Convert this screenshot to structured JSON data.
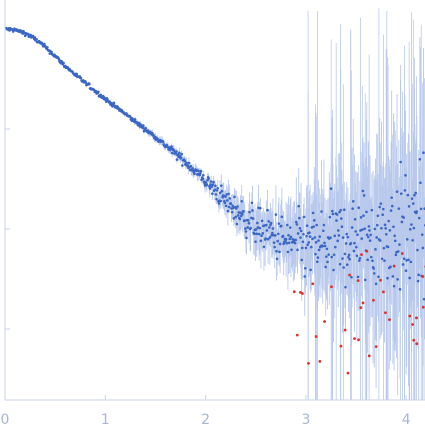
{
  "chart_data": {
    "type": "scatter",
    "title": "",
    "xlabel": "",
    "ylabel": "",
    "xlim": [
      0,
      4.2
    ],
    "y_scale": "log",
    "ylim_log10": [
      -2.7,
      1.1
    ],
    "x_ticks": [
      {
        "value": 0,
        "label": "0"
      },
      {
        "value": 1,
        "label": "1"
      },
      {
        "value": 2,
        "label": "2"
      },
      {
        "value": 3,
        "label": "3"
      },
      {
        "value": 4,
        "label": "4"
      }
    ],
    "y_ticks_log10": [
      0,
      -1,
      -2
    ],
    "grid": false,
    "legend": "none",
    "colors": {
      "axis": "#c8d2ea",
      "tick_text": "#a8b6d6",
      "points": "#3a66c4",
      "error_bars": "#b9c9ec",
      "outliers": "#e0312b"
    },
    "profile_log10": [
      [
        0.0,
        1.0
      ],
      [
        0.1,
        0.99
      ],
      [
        0.2,
        0.96
      ],
      [
        0.3,
        0.9
      ],
      [
        0.4,
        0.82
      ],
      [
        0.5,
        0.73
      ],
      [
        0.6,
        0.63
      ],
      [
        0.8,
        0.46
      ],
      [
        1.0,
        0.3
      ],
      [
        1.2,
        0.15
      ],
      [
        1.5,
        -0.08
      ],
      [
        1.8,
        -0.33
      ],
      [
        2.0,
        -0.52
      ],
      [
        2.2,
        -0.72
      ],
      [
        2.4,
        -0.9
      ],
      [
        2.6,
        -1.03
      ],
      [
        2.8,
        -1.12
      ],
      [
        3.0,
        -1.16
      ],
      [
        3.2,
        -1.15
      ],
      [
        3.5,
        -1.1
      ],
      [
        3.8,
        -1.06
      ],
      [
        4.2,
        -1.02
      ]
    ],
    "series": [
      {
        "name": "",
        "color": "points",
        "n": 700
      },
      {
        "name": "",
        "color": "outliers",
        "n": 38,
        "x_range": [
          2.85,
          4.2
        ]
      }
    ]
  }
}
